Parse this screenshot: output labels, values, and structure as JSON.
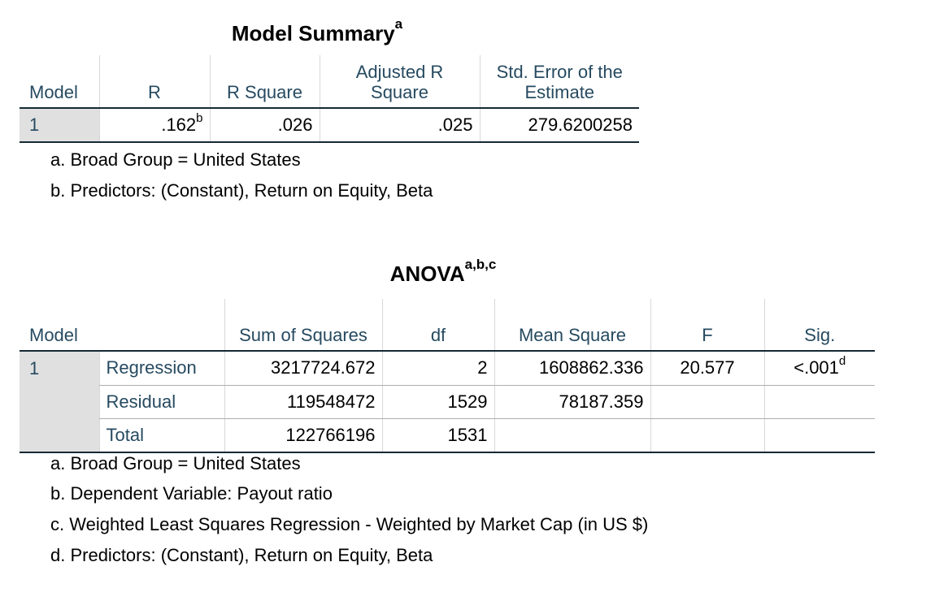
{
  "model_summary": {
    "title": "Model Summary",
    "title_sup": "a",
    "headers": [
      "Model",
      "R",
      "R Square",
      "Adjusted R Square",
      "Std. Error of the Estimate"
    ],
    "rows": [
      {
        "model": "1",
        "r": ".162",
        "r_sup": "b",
        "r_square": ".026",
        "adj_r_square": ".025",
        "std_error": "279.6200258"
      }
    ],
    "footnotes": [
      "a. Broad Group = United States",
      "b. Predictors: (Constant), Return on Equity, Beta"
    ]
  },
  "anova": {
    "title": "ANOVA",
    "title_sup": "a,b,c",
    "headers": [
      "Model",
      "",
      "Sum of Squares",
      "df",
      "Mean Square",
      "F",
      "Sig."
    ],
    "model": "1",
    "rows": [
      {
        "label": "Regression",
        "ss": "3217724.672",
        "df": "2",
        "ms": "1608862.336",
        "f": "20.577",
        "sig": "<.001",
        "sig_sup": "d"
      },
      {
        "label": "Residual",
        "ss": "119548472",
        "df": "1529",
        "ms": "78187.359",
        "f": "",
        "sig": ""
      },
      {
        "label": "Total",
        "ss": "122766196",
        "df": "1531",
        "ms": "",
        "f": "",
        "sig": ""
      }
    ],
    "footnotes": [
      "a. Broad Group = United States",
      "b. Dependent Variable: Payout ratio",
      "c. Weighted Least Squares Regression - Weighted by Market Cap (in US $)",
      "d. Predictors: (Constant), Return on Equity, Beta"
    ]
  }
}
